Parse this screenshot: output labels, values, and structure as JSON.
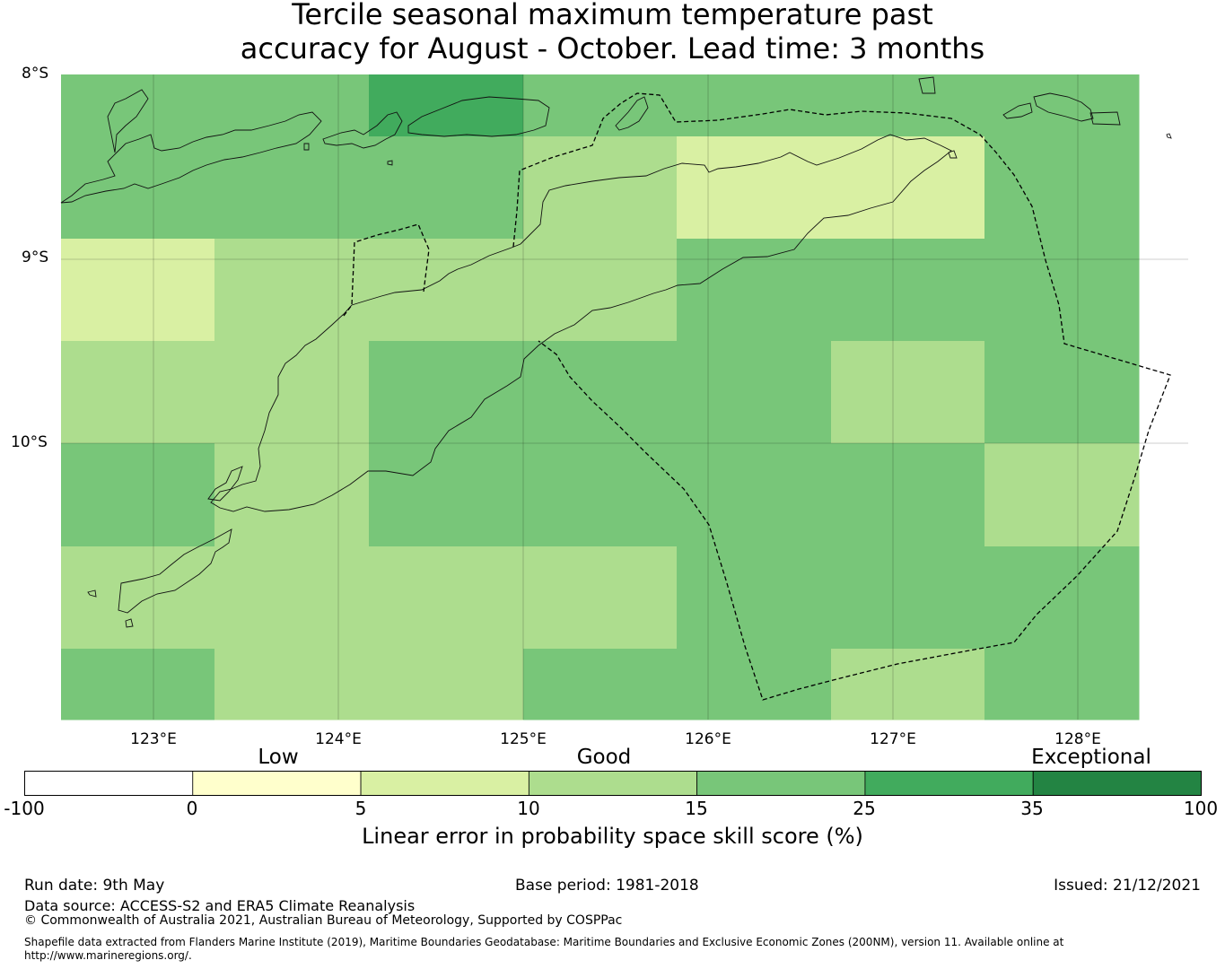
{
  "title": {
    "line1": "Tercile seasonal maximum temperature past",
    "line2": "accuracy for August - October. Lead time: 3 months"
  },
  "map": {
    "lat_labels": [
      "8°S",
      "9°S",
      "10°S"
    ],
    "lon_labels": [
      "123°E",
      "124°E",
      "125°E",
      "126°E",
      "127°E",
      "128°E"
    ],
    "grid_skill_categories": [
      [
        4,
        4,
        5,
        4,
        4,
        4,
        4
      ],
      [
        4,
        4,
        4,
        3,
        2,
        2,
        4
      ],
      [
        2,
        3,
        3,
        3,
        4,
        4,
        4
      ],
      [
        3,
        3,
        4,
        4,
        4,
        3,
        4
      ],
      [
        4,
        3,
        4,
        4,
        4,
        4,
        3
      ],
      [
        3,
        3,
        3,
        3,
        4,
        4,
        4
      ],
      [
        4,
        3,
        3,
        4,
        4,
        3,
        4
      ]
    ]
  },
  "colorbar": {
    "category_labels": {
      "low": "Low",
      "good": "Good",
      "exceptional": "Exceptional"
    },
    "ticks": [
      "-100",
      "0",
      "5",
      "10",
      "15",
      "25",
      "35",
      "100"
    ],
    "colors": [
      "#ffffff",
      "#ffffcc",
      "#d9f0a3",
      "#addd8e",
      "#78c679",
      "#41ab5d",
      "#238443"
    ],
    "label": "Linear error in probability space skill score (%)"
  },
  "footer": {
    "run_date": "Run date: 9th May",
    "base_period": "Base period: 1981-2018",
    "issued": "Issued: 21/12/2021",
    "data_source": "Data source: ACCESS-S2 and ERA5 Climate Reanalysis",
    "copyright": "© Commonwealth of Australia 2021, Australian Bureau of Meteorology, Supported by COSPPac",
    "shapefile_line1": "Shapefile data extracted from Flanders Marine Institute (2019), Maritime Boundaries Geodatabase: Maritime Boundaries and Exclusive Economic Zones (200NM), version 11. Available online at",
    "shapefile_line2": "http://www.marineregions.org/."
  }
}
